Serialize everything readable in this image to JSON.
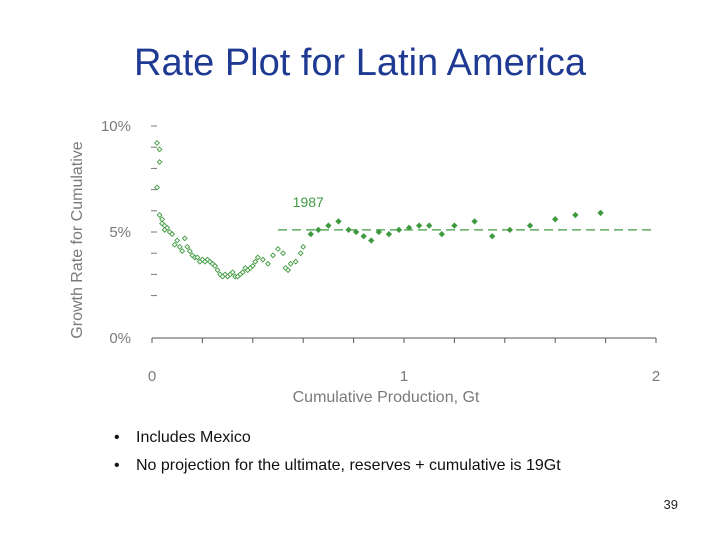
{
  "slide": {
    "title": "Rate Plot for Latin America",
    "bullets": [
      "Includes Mexico",
      "No projection for the ultimate, reserves + cumulative is 19Gt"
    ],
    "page_number": "39"
  },
  "chart_data": {
    "type": "scatter",
    "title": "",
    "xlabel": "Cumulative Production, Gt",
    "ylabel": "Growth Rate for Cumulative",
    "xlim": [
      0,
      2
    ],
    "ylim": [
      0,
      10
    ],
    "x_ticks": [
      0,
      1,
      2
    ],
    "x_tick_labels": [
      "0",
      "1",
      "2"
    ],
    "y_ticks": [
      0,
      5,
      10
    ],
    "y_tick_labels": [
      "0%",
      "5%",
      "10%"
    ],
    "grid": false,
    "colors": {
      "points": "#3f9a3f",
      "dashed_line": "#3f9a3f",
      "axis_text": "#7a7a7a"
    },
    "reference_line": {
      "y": 5.1,
      "style": "dashed"
    },
    "annotations": [
      {
        "text": "1987",
        "x": 0.62,
        "y": 6.0
      }
    ],
    "series": [
      {
        "marker": "open-diamond",
        "points": [
          [
            0.02,
            9.2
          ],
          [
            0.03,
            8.9
          ],
          [
            0.03,
            8.3
          ],
          [
            0.02,
            7.1
          ],
          [
            0.03,
            5.8
          ],
          [
            0.04,
            5.6
          ],
          [
            0.04,
            5.4
          ],
          [
            0.05,
            5.3
          ],
          [
            0.05,
            5.1
          ],
          [
            0.06,
            5.2
          ],
          [
            0.07,
            5.0
          ],
          [
            0.08,
            4.9
          ],
          [
            0.09,
            4.4
          ],
          [
            0.1,
            4.6
          ],
          [
            0.11,
            4.3
          ],
          [
            0.12,
            4.1
          ],
          [
            0.13,
            4.7
          ],
          [
            0.14,
            4.3
          ],
          [
            0.15,
            4.1
          ],
          [
            0.16,
            3.9
          ],
          [
            0.17,
            3.8
          ],
          [
            0.18,
            3.8
          ],
          [
            0.19,
            3.6
          ],
          [
            0.2,
            3.7
          ],
          [
            0.21,
            3.6
          ],
          [
            0.22,
            3.7
          ],
          [
            0.23,
            3.6
          ],
          [
            0.24,
            3.5
          ],
          [
            0.25,
            3.4
          ],
          [
            0.26,
            3.2
          ],
          [
            0.27,
            3.0
          ],
          [
            0.28,
            2.9
          ],
          [
            0.29,
            3.0
          ],
          [
            0.3,
            2.9
          ],
          [
            0.31,
            3.0
          ],
          [
            0.32,
            3.1
          ],
          [
            0.33,
            2.9
          ],
          [
            0.34,
            2.9
          ],
          [
            0.35,
            3.0
          ],
          [
            0.36,
            3.1
          ],
          [
            0.37,
            3.3
          ],
          [
            0.38,
            3.2
          ],
          [
            0.39,
            3.3
          ],
          [
            0.4,
            3.4
          ],
          [
            0.41,
            3.6
          ],
          [
            0.42,
            3.8
          ],
          [
            0.44,
            3.7
          ],
          [
            0.46,
            3.5
          ],
          [
            0.48,
            3.9
          ],
          [
            0.5,
            4.2
          ],
          [
            0.52,
            4.0
          ],
          [
            0.53,
            3.3
          ],
          [
            0.54,
            3.2
          ],
          [
            0.55,
            3.5
          ],
          [
            0.57,
            3.6
          ],
          [
            0.59,
            4.0
          ],
          [
            0.6,
            4.3
          ]
        ]
      },
      {
        "marker": "filled-diamond",
        "points": [
          [
            0.63,
            4.9
          ],
          [
            0.66,
            5.1
          ],
          [
            0.7,
            5.3
          ],
          [
            0.74,
            5.5
          ],
          [
            0.78,
            5.1
          ],
          [
            0.81,
            5.0
          ],
          [
            0.84,
            4.8
          ],
          [
            0.87,
            4.6
          ],
          [
            0.9,
            5.0
          ],
          [
            0.94,
            4.9
          ],
          [
            0.98,
            5.1
          ],
          [
            1.02,
            5.2
          ],
          [
            1.06,
            5.3
          ],
          [
            1.1,
            5.3
          ],
          [
            1.15,
            4.9
          ],
          [
            1.2,
            5.3
          ],
          [
            1.28,
            5.5
          ],
          [
            1.35,
            4.8
          ],
          [
            1.42,
            5.1
          ],
          [
            1.5,
            5.3
          ],
          [
            1.6,
            5.6
          ],
          [
            1.68,
            5.8
          ],
          [
            1.78,
            5.9
          ]
        ]
      }
    ]
  }
}
